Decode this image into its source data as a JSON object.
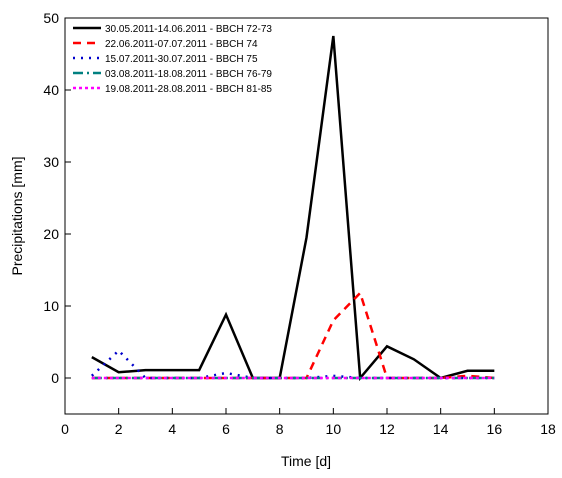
{
  "chart_data": {
    "type": "line",
    "x_label": "Time [d]",
    "y_label": "Precipitations [mm]",
    "x": [
      1,
      2,
      3,
      4,
      5,
      6,
      7,
      8,
      9,
      10,
      11,
      12,
      13,
      14,
      15,
      16
    ],
    "series": [
      {
        "name": "30.05.2011-14.06.2011 - BBCH 72-73",
        "color": "#000000",
        "dash": "solid",
        "values": [
          2.9,
          0.8,
          1.1,
          1.1,
          1.1,
          8.8,
          0,
          0,
          19.5,
          47.5,
          0,
          4.4,
          2.6,
          0,
          1.0,
          1.0
        ]
      },
      {
        "name": "22.06.2011-07.07.2011 - BBCH 74",
        "color": "#ff0000",
        "dash": "dash",
        "values": [
          0,
          0,
          0,
          0,
          0,
          0,
          0,
          0,
          0,
          8,
          11.8,
          0,
          0,
          0,
          0.3,
          0
        ]
      },
      {
        "name": "15.07.2011-30.07.2011 - BBCH 75",
        "color": "#0000cc",
        "dash": "dot",
        "values": [
          0.3,
          3.8,
          0,
          0,
          0,
          0.7,
          0,
          0,
          0,
          0.3,
          0,
          0,
          0,
          0,
          0,
          0
        ]
      },
      {
        "name": "03.08.2011-18.08.2011 - BBCH 76-79",
        "color": "#008080",
        "dash": "dashdot",
        "values": [
          0,
          0,
          0,
          0,
          0,
          0,
          0,
          0,
          0,
          0,
          0,
          0,
          0,
          0,
          0,
          0
        ]
      },
      {
        "name": "19.08.2011-28.08.2011 - BBCH 81-85",
        "color": "#ff00ff",
        "dash": "shortdot",
        "values": [
          0,
          0,
          0,
          0,
          0,
          0,
          0,
          0,
          0,
          0,
          0,
          0,
          0,
          0,
          0,
          0
        ]
      }
    ],
    "xlim": [
      0,
      18
    ],
    "xticks": [
      0,
      2,
      4,
      6,
      8,
      10,
      12,
      14,
      16,
      18
    ],
    "ylim": [
      -5,
      50
    ],
    "yticks": [
      0,
      10,
      20,
      30,
      40,
      50
    ],
    "legend": "upper-left",
    "grid": false
  }
}
